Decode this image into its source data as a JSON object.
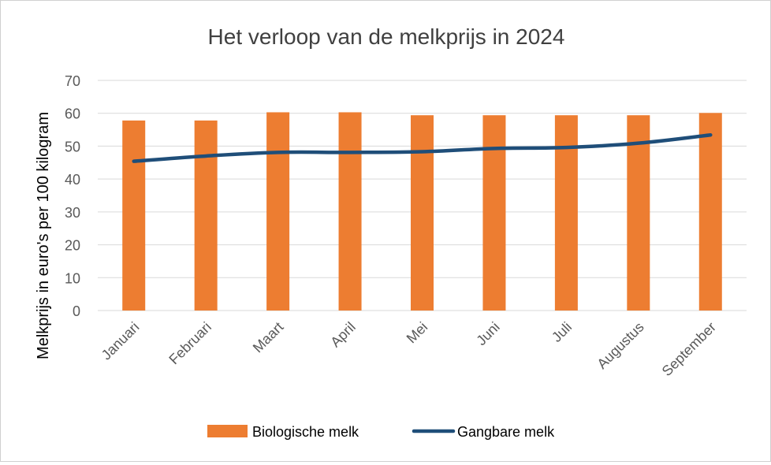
{
  "chart_data": {
    "type": "bar",
    "title": "Het verloop van de melkprijs in 2024",
    "xlabel": "",
    "ylabel": "Melkprijs in euro's per 100 kilogram",
    "categories": [
      "Januari",
      "Februari",
      "Maart",
      "April",
      "Mei",
      "Juni",
      "Juli",
      "Augustus",
      "September"
    ],
    "ylim": [
      0,
      70
    ],
    "yticks": [
      0,
      10,
      20,
      30,
      40,
      50,
      60,
      70
    ],
    "grid": true,
    "legend_position": "bottom",
    "series": [
      {
        "name": "Biologische melk",
        "type": "bar",
        "color": "#ED7D31",
        "values": [
          57.8,
          57.8,
          60.3,
          60.3,
          59.4,
          59.4,
          59.4,
          59.4,
          60.1
        ]
      },
      {
        "name": "Gangbare melk",
        "type": "line",
        "color": "#1F4E79",
        "values": [
          45.4,
          47.0,
          48.1,
          48.1,
          48.3,
          49.3,
          49.6,
          50.9,
          53.4
        ]
      }
    ]
  }
}
